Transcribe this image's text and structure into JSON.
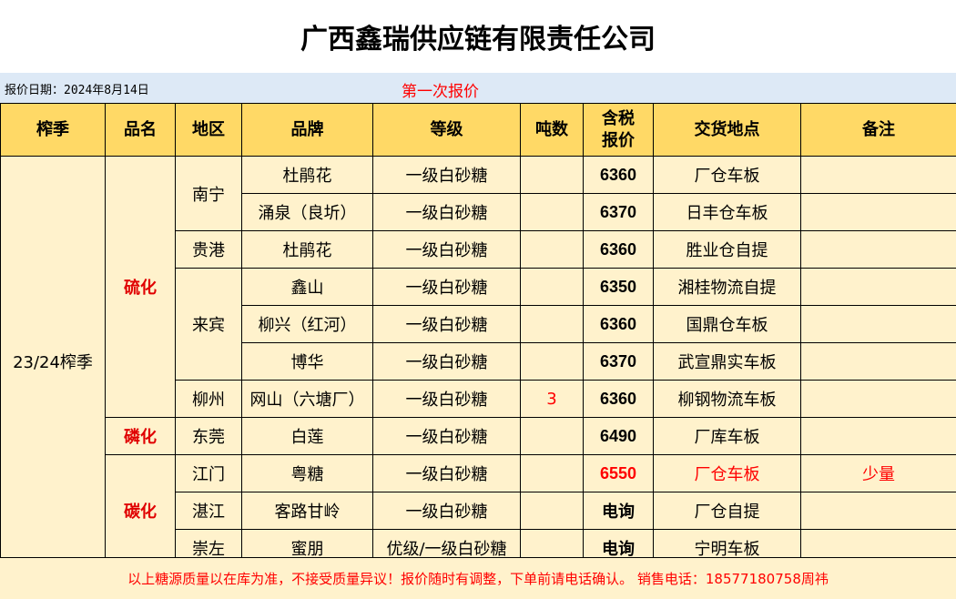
{
  "title": "广西鑫瑞供应链有限责任公司",
  "date_label": "报价日期：2024年8月14日",
  "round_label": "第一次报价",
  "headers": [
    "榨季",
    "品名",
    "地区",
    "品牌",
    "等级",
    "吨数",
    "含税\n报价",
    "交货地点",
    "备注"
  ],
  "season": "23/24榨季",
  "products": [
    {
      "name": "硫化",
      "regions": [
        {
          "name": "南宁",
          "items": [
            {
              "brand": "杜鹃花",
              "grade": "一级白砂糖",
              "tons": "",
              "price": "6360",
              "delivery": "厂仓车板",
              "note": ""
            },
            {
              "brand": "涌泉（良圻）",
              "grade": "一级白砂糖",
              "tons": "",
              "price": "6370",
              "delivery": "日丰仓车板",
              "note": ""
            }
          ]
        },
        {
          "name": "贵港",
          "items": [
            {
              "brand": "杜鹃花",
              "grade": "一级白砂糖",
              "tons": "",
              "price": "6360",
              "delivery": "胜业仓自提",
              "note": ""
            }
          ]
        },
        {
          "name": "来宾",
          "items": [
            {
              "brand": "鑫山",
              "grade": "一级白砂糖",
              "tons": "",
              "price": "6350",
              "delivery": "湘桂物流自提",
              "note": ""
            },
            {
              "brand": "柳兴（红河）",
              "grade": "一级白砂糖",
              "tons": "",
              "price": "6360",
              "delivery": "国鼎仓车板",
              "note": ""
            },
            {
              "brand": "博华",
              "grade": "一级白砂糖",
              "tons": "",
              "price": "6370",
              "delivery": "武宣鼎实车板",
              "note": ""
            }
          ]
        },
        {
          "name": "柳州",
          "items": [
            {
              "brand": "网山（六塘厂）",
              "grade": "一级白砂糖",
              "tons": "3",
              "price": "6360",
              "delivery": "柳钢物流车板",
              "note": ""
            }
          ]
        }
      ]
    },
    {
      "name": "磷化",
      "regions": [
        {
          "name": "东莞",
          "items": [
            {
              "brand": "白莲",
              "grade": "一级白砂糖",
              "tons": "",
              "price": "6490",
              "delivery": "厂库车板",
              "note": ""
            }
          ]
        }
      ]
    },
    {
      "name": "碳化",
      "regions": [
        {
          "name": "江门",
          "items": [
            {
              "brand": "粤糖",
              "grade": "一级白砂糖",
              "tons": "",
              "price": "6550",
              "delivery": "厂仓车板",
              "note": "少量",
              "highlight": true
            }
          ]
        },
        {
          "name": "湛江",
          "items": [
            {
              "brand": "客路甘岭",
              "grade": "一级白砂糖",
              "tons": "",
              "price": "电询",
              "delivery": "厂仓自提",
              "note": ""
            }
          ]
        },
        {
          "name": "崇左",
          "items": [
            {
              "brand": "蜜朋",
              "grade": "优级/一级白砂糖",
              "tons": "",
              "price": "电询",
              "delivery": "宁明车板",
              "note": ""
            }
          ]
        }
      ]
    }
  ],
  "footer": "以上糖源质量以在库为准，不接受质量异议！报价随时有调整，下单前请电话确认。 销售电话：18577180758周祎",
  "colors": {
    "header_bg": "#ffd966",
    "body_bg": "#fff2cc",
    "date_bg": "#dde9f6",
    "accent_red": "#ff0000"
  }
}
